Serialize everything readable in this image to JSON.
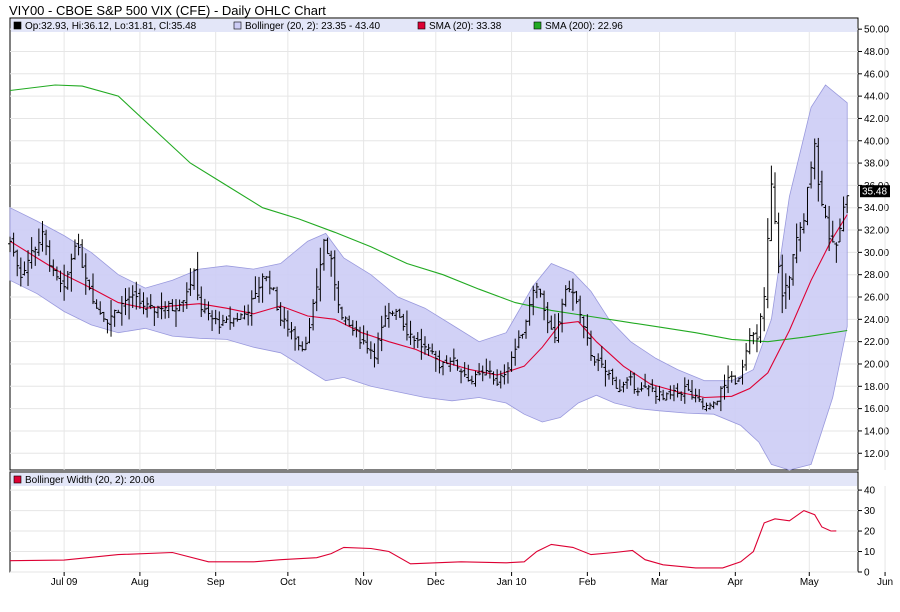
{
  "chart_data": {
    "type": "ohlc",
    "title": "VIY00 - CBOE S&P 500 VIX (CFE) - Daily OHLC Chart",
    "price_panel": {
      "ylim": [
        10.5,
        51
      ],
      "y_ticks": [
        12,
        14,
        16,
        18,
        20,
        22,
        24,
        26,
        28,
        30,
        32,
        34,
        36,
        38,
        40,
        42,
        44,
        46,
        48,
        50
      ],
      "last_price_label": "35.48",
      "legend": {
        "ohlc": "Op:32.93, Hi:36.12, Lo:31.81, Cl:35.48",
        "bollinger": "Bollinger (20, 2): 23.35 - 43.40",
        "sma20": "SMA (20): 33.38",
        "sma200": "SMA (200): 22.96"
      },
      "colors": {
        "ohlc": "#000000",
        "band_fill": "#ccccf5",
        "band_edge": "#9999dd",
        "sma20": "#dd0033",
        "sma200": "#22aa22",
        "legend_bg": "#e3e6f8"
      },
      "ohlc_anchors": [
        [
          0,
          31
        ],
        [
          6,
          28
        ],
        [
          12,
          30
        ],
        [
          18,
          31.5
        ],
        [
          24,
          28
        ],
        [
          30,
          26.5
        ],
        [
          36,
          31
        ],
        [
          42,
          28
        ],
        [
          48,
          25
        ],
        [
          54,
          24
        ],
        [
          60,
          25
        ],
        [
          66,
          26
        ],
        [
          72,
          25.5
        ],
        [
          78,
          24.8
        ],
        [
          84,
          25.2
        ],
        [
          90,
          25
        ],
        [
          96,
          26
        ],
        [
          102,
          28
        ],
        [
          106,
          25
        ],
        [
          112,
          24
        ],
        [
          118,
          23.5
        ],
        [
          124,
          24
        ],
        [
          130,
          24.5
        ],
        [
          136,
          26
        ],
        [
          140,
          28
        ],
        [
          145,
          27
        ],
        [
          150,
          24
        ],
        [
          156,
          23
        ],
        [
          162,
          21.5
        ],
        [
          166,
          23
        ],
        [
          170,
          27
        ],
        [
          174,
          31
        ],
        [
          178,
          29
        ],
        [
          184,
          24
        ],
        [
          190,
          23
        ],
        [
          196,
          22
        ],
        [
          202,
          21
        ],
        [
          208,
          24
        ],
        [
          214,
          25
        ],
        [
          220,
          23
        ],
        [
          226,
          22
        ],
        [
          232,
          21
        ],
        [
          238,
          20
        ],
        [
          244,
          20.5
        ],
        [
          250,
          19.5
        ],
        [
          256,
          18.5
        ],
        [
          262,
          19
        ],
        [
          266,
          19.5
        ],
        [
          270,
          18
        ],
        [
          276,
          20
        ],
        [
          282,
          22
        ],
        [
          286,
          24
        ],
        [
          290,
          27
        ],
        [
          294,
          26.5
        ],
        [
          298,
          23.5
        ],
        [
          302,
          22
        ],
        [
          306,
          25.5
        ],
        [
          310,
          27
        ],
        [
          314,
          25.5
        ],
        [
          318,
          23
        ],
        [
          322,
          21
        ],
        [
          326,
          20
        ],
        [
          332,
          19
        ],
        [
          338,
          17.8
        ],
        [
          344,
          18.4
        ],
        [
          350,
          17.6
        ],
        [
          356,
          17.8
        ],
        [
          362,
          16.8
        ],
        [
          368,
          17.2
        ],
        [
          374,
          17.8
        ],
        [
          380,
          16.8
        ],
        [
          384,
          16.2
        ],
        [
          388,
          16
        ],
        [
          392,
          17
        ],
        [
          396,
          18
        ],
        [
          398,
          19
        ],
        [
          402,
          18
        ],
        [
          406,
          20
        ],
        [
          410,
          23
        ],
        [
          414,
          22
        ],
        [
          418,
          26
        ],
        [
          422,
          36
        ],
        [
          426,
          29
        ],
        [
          428,
          26
        ],
        [
          432,
          28
        ],
        [
          436,
          31
        ],
        [
          440,
          33
        ],
        [
          444,
          38
        ],
        [
          446,
          40
        ],
        [
          448,
          36
        ],
        [
          451,
          34
        ],
        [
          454,
          31.5
        ],
        [
          457,
          30
        ],
        [
          460,
          32
        ],
        [
          464,
          35.5
        ]
      ],
      "sma200_points": [
        [
          0,
          44.5
        ],
        [
          25,
          45
        ],
        [
          40,
          44.9
        ],
        [
          60,
          44
        ],
        [
          80,
          41
        ],
        [
          100,
          38
        ],
        [
          120,
          36
        ],
        [
          140,
          34
        ],
        [
          160,
          33
        ],
        [
          180,
          31.8
        ],
        [
          200,
          30.5
        ],
        [
          220,
          29
        ],
        [
          240,
          28
        ],
        [
          260,
          26.7
        ],
        [
          280,
          25.5
        ],
        [
          300,
          24.8
        ],
        [
          320,
          24.3
        ],
        [
          340,
          23.8
        ],
        [
          360,
          23.3
        ],
        [
          380,
          22.8
        ],
        [
          400,
          22.2
        ],
        [
          420,
          22
        ],
        [
          440,
          22.4
        ],
        [
          464,
          23
        ]
      ],
      "sma20_points": [
        [
          0,
          31
        ],
        [
          15,
          29.5
        ],
        [
          30,
          28
        ],
        [
          45,
          26.8
        ],
        [
          60,
          25.5
        ],
        [
          75,
          25
        ],
        [
          90,
          25.2
        ],
        [
          105,
          25.4
        ],
        [
          120,
          25
        ],
        [
          135,
          24.5
        ],
        [
          150,
          25.2
        ],
        [
          165,
          24.3
        ],
        [
          180,
          24
        ],
        [
          195,
          22.8
        ],
        [
          210,
          22
        ],
        [
          225,
          21.3
        ],
        [
          240,
          20.2
        ],
        [
          255,
          19.5
        ],
        [
          270,
          19
        ],
        [
          285,
          19.8
        ],
        [
          295,
          21.5
        ],
        [
          305,
          23.6
        ],
        [
          315,
          23.8
        ],
        [
          325,
          22
        ],
        [
          340,
          19.8
        ],
        [
          355,
          18.2
        ],
        [
          370,
          17.5
        ],
        [
          385,
          17
        ],
        [
          400,
          17.1
        ],
        [
          410,
          17.8
        ],
        [
          420,
          19.2
        ],
        [
          432,
          23
        ],
        [
          444,
          27.5
        ],
        [
          455,
          31
        ],
        [
          464,
          33.38
        ]
      ],
      "bollinger_upper": [
        [
          0,
          34
        ],
        [
          15,
          32.8
        ],
        [
          30,
          31.5
        ],
        [
          45,
          30
        ],
        [
          60,
          28
        ],
        [
          75,
          26.8
        ],
        [
          90,
          27.5
        ],
        [
          105,
          28.5
        ],
        [
          120,
          28.8
        ],
        [
          135,
          28.5
        ],
        [
          150,
          29
        ],
        [
          165,
          31
        ],
        [
          175,
          31.7
        ],
        [
          185,
          29.5
        ],
        [
          200,
          28
        ],
        [
          215,
          26
        ],
        [
          230,
          25
        ],
        [
          245,
          23.5
        ],
        [
          260,
          22
        ],
        [
          275,
          22.8
        ],
        [
          290,
          27
        ],
        [
          300,
          29
        ],
        [
          312,
          28.2
        ],
        [
          322,
          26.5
        ],
        [
          332,
          24
        ],
        [
          344,
          22
        ],
        [
          358,
          20.5
        ],
        [
          370,
          19.5
        ],
        [
          385,
          18.5
        ],
        [
          400,
          18.5
        ],
        [
          412,
          19.5
        ],
        [
          422,
          24
        ],
        [
          432,
          35
        ],
        [
          444,
          43
        ],
        [
          452,
          45
        ],
        [
          464,
          43.4
        ]
      ],
      "bollinger_lower": [
        [
          0,
          27.5
        ],
        [
          15,
          26.3
        ],
        [
          30,
          24.7
        ],
        [
          45,
          23.5
        ],
        [
          60,
          22.8
        ],
        [
          75,
          23.2
        ],
        [
          90,
          22.5
        ],
        [
          105,
          22.3
        ],
        [
          120,
          22.2
        ],
        [
          135,
          21.5
        ],
        [
          150,
          21
        ],
        [
          165,
          19.5
        ],
        [
          175,
          18.5
        ],
        [
          185,
          18.8
        ],
        [
          200,
          18
        ],
        [
          215,
          17.5
        ],
        [
          230,
          17
        ],
        [
          245,
          16.7
        ],
        [
          260,
          17
        ],
        [
          275,
          16.5
        ],
        [
          285,
          15.5
        ],
        [
          295,
          14.8
        ],
        [
          305,
          15.2
        ],
        [
          315,
          16.5
        ],
        [
          325,
          17.2
        ],
        [
          335,
          16.5
        ],
        [
          348,
          16
        ],
        [
          360,
          15.8
        ],
        [
          375,
          15.6
        ],
        [
          390,
          15.5
        ],
        [
          405,
          14.5
        ],
        [
          415,
          13
        ],
        [
          422,
          11
        ],
        [
          432,
          10.5
        ],
        [
          444,
          11
        ],
        [
          456,
          17
        ],
        [
          464,
          23.35
        ]
      ]
    },
    "width_panel": {
      "ylim": [
        0,
        42
      ],
      "y_ticks": [
        0,
        10,
        20,
        30,
        40
      ],
      "legend": "Bollinger Width (20, 2): 20.06",
      "color": "#dd0033",
      "points": [
        [
          0,
          5.5
        ],
        [
          30,
          5.8
        ],
        [
          60,
          8.5
        ],
        [
          90,
          9.5
        ],
        [
          110,
          5
        ],
        [
          135,
          5
        ],
        [
          150,
          6
        ],
        [
          170,
          7
        ],
        [
          178,
          9
        ],
        [
          185,
          12
        ],
        [
          200,
          11.5
        ],
        [
          210,
          10
        ],
        [
          222,
          4
        ],
        [
          250,
          5
        ],
        [
          275,
          4.5
        ],
        [
          285,
          5
        ],
        [
          292,
          10
        ],
        [
          300,
          13.5
        ],
        [
          312,
          12
        ],
        [
          322,
          8.5
        ],
        [
          335,
          9.5
        ],
        [
          345,
          10.5
        ],
        [
          352,
          6
        ],
        [
          362,
          3.5
        ],
        [
          380,
          2
        ],
        [
          395,
          2
        ],
        [
          405,
          5
        ],
        [
          412,
          10
        ],
        [
          418,
          24
        ],
        [
          424,
          26
        ],
        [
          432,
          25
        ],
        [
          440,
          30
        ],
        [
          446,
          28
        ],
        [
          450,
          22
        ],
        [
          455,
          20
        ],
        [
          458,
          20.06
        ]
      ]
    },
    "x_axis": {
      "day_range": [
        0,
        470
      ],
      "labels": [
        [
          "Jul 09",
          30
        ],
        [
          "Aug",
          72
        ],
        [
          "Sep",
          114
        ],
        [
          "Oct",
          154
        ],
        [
          "Nov",
          196
        ],
        [
          "Dec",
          236
        ],
        [
          "Jan 10",
          278
        ],
        [
          "Feb",
          320
        ],
        [
          "Mar",
          360
        ],
        [
          "Apr",
          402
        ],
        [
          "May",
          443
        ],
        [
          "Jun",
          485
        ]
      ]
    }
  }
}
